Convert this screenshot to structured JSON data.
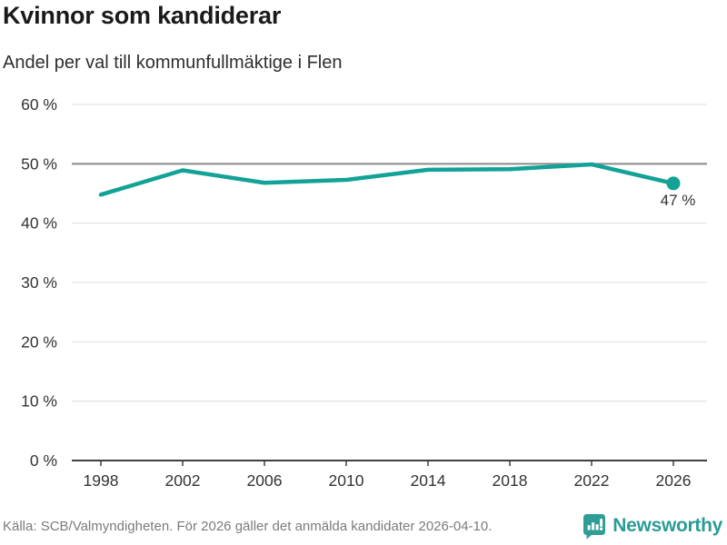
{
  "header": {
    "title": "Kvinnor som kandiderar",
    "subtitle": "Andel per val till kommunfullmäktige i Flen"
  },
  "chart_data": {
    "type": "line",
    "title": "Kvinnor som kandiderar",
    "subtitle": "Andel per val till kommunfullmäktige i Flen",
    "categories": [
      "1998",
      "2002",
      "2006",
      "2010",
      "2014",
      "2018",
      "2022",
      "2026"
    ],
    "values": [
      44.8,
      48.9,
      46.8,
      47.3,
      49.0,
      49.1,
      49.9,
      46.7
    ],
    "xlabel": "",
    "ylabel": "",
    "ylim": [
      0,
      60
    ],
    "ytick_step": 10,
    "yticks": [
      "0 %",
      "10 %",
      "20 %",
      "30 %",
      "40 %",
      "50 %",
      "60 %"
    ],
    "emphasized_gridline_value": 50,
    "grid": true,
    "legend": false,
    "last_point_label": "47 %"
  },
  "footer": {
    "source": "Källa: SCB/Valmyndigheten. För 2026 gäller det anmälda kandidater 2026-04-10.",
    "brand": "Newsworthy"
  },
  "colors": {
    "accent_teal": "#12a296",
    "brand_teal": "#2f9d96",
    "grid_light": "#dddddd",
    "grid_emphasis": "#8a8a8a",
    "axis_dark": "#3f3f3f",
    "text_dark": "#333333",
    "title_dark": "#1a1a1a"
  }
}
